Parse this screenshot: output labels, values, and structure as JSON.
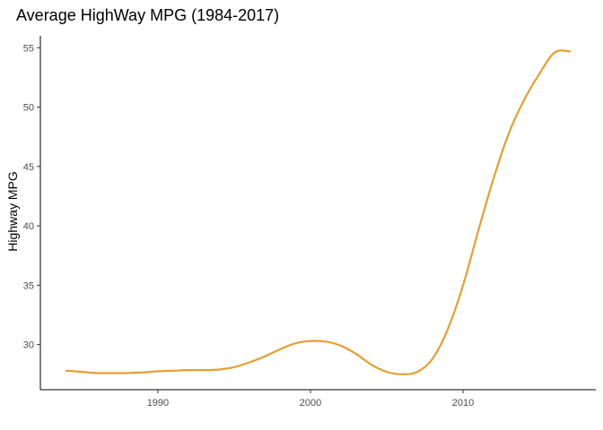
{
  "chart_data": {
    "type": "line",
    "title": "Average HighWay MPG (1984-2017)",
    "xlabel": "",
    "ylabel": "Highway MPG",
    "xlim": [
      1982.3,
      2018.7
    ],
    "ylim": [
      26.2,
      56.0
    ],
    "x_ticks": [
      1990,
      2000,
      2010
    ],
    "y_ticks": [
      30,
      35,
      40,
      45,
      50,
      55
    ],
    "grid": false,
    "legend": "none",
    "series": [
      {
        "color": "#E69F30",
        "x": [
          1984,
          1985,
          1986,
          1987,
          1988,
          1989,
          1990,
          1991,
          1992,
          1993,
          1994,
          1995,
          1996,
          1997,
          1998,
          1999,
          2000,
          2001,
          2002,
          2003,
          2004,
          2005,
          2006,
          2007,
          2008,
          2009,
          2010,
          2011,
          2012,
          2013,
          2014,
          2015,
          2016,
          2017
        ],
        "y": [
          27.8,
          27.7,
          27.6,
          27.6,
          27.6,
          27.65,
          27.75,
          27.8,
          27.85,
          27.85,
          27.9,
          28.1,
          28.5,
          29.0,
          29.6,
          30.1,
          30.3,
          30.25,
          29.9,
          29.2,
          28.3,
          27.7,
          27.5,
          27.7,
          28.8,
          31.3,
          35.0,
          39.6,
          44.0,
          47.8,
          50.6,
          52.8,
          54.6,
          54.7
        ]
      }
    ]
  }
}
